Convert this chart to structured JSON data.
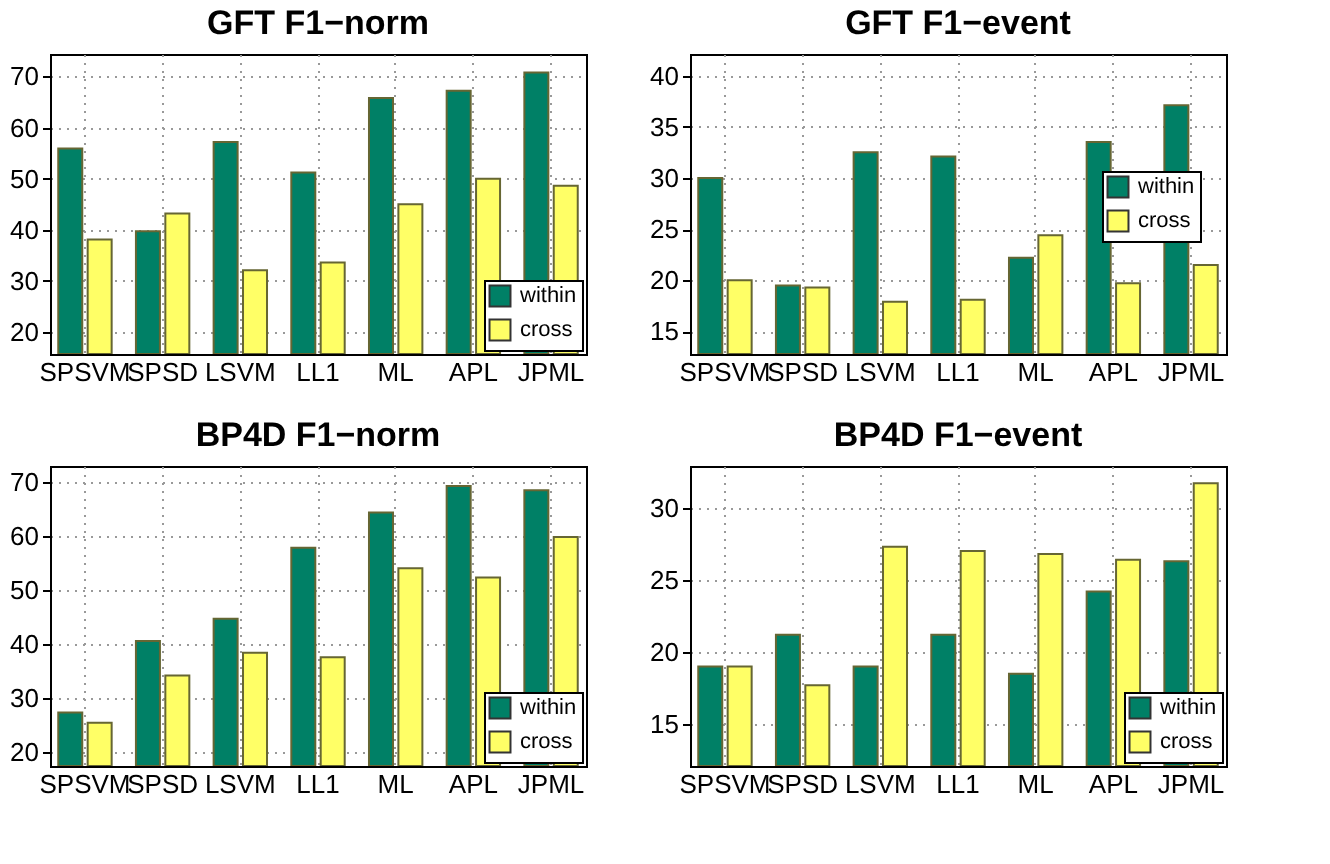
{
  "chart_data": [
    {
      "type": "bar",
      "title": "GFT F1−norm",
      "categories": [
        "SPSVM",
        "SPSD",
        "LSVM",
        "LL1",
        "ML",
        "APL",
        "JPML"
      ],
      "series": [
        {
          "name": "within",
          "color": "#008066",
          "values": [
            55.9,
            39.7,
            57.2,
            51.2,
            65.8,
            67.2,
            70.8
          ]
        },
        {
          "name": "cross",
          "color": "#ffff66",
          "values": [
            38.1,
            43.2,
            32.1,
            33.6,
            45,
            50,
            48.6
          ]
        }
      ],
      "ylim": [
        15.7,
        74.4
      ],
      "yticks": [
        20,
        30,
        40,
        50,
        60,
        70
      ],
      "grid": true,
      "legend": "bottom right"
    },
    {
      "type": "bar",
      "title": "GFT F1−event",
      "categories": [
        "SPSVM",
        "SPSD",
        "LSVM",
        "LL1",
        "ML",
        "APL",
        "JPML"
      ],
      "series": [
        {
          "name": "within",
          "color": "#008066",
          "values": [
            30,
            19.5,
            32.5,
            32.1,
            22.2,
            33.5,
            37.1
          ]
        },
        {
          "name": "cross",
          "color": "#ffff66",
          "values": [
            20,
            19.3,
            17.9,
            18.1,
            24.4,
            19.7,
            21.5
          ]
        }
      ],
      "ylim": [
        12.8,
        42.1
      ],
      "yticks": [
        15,
        20,
        25,
        30,
        35,
        40
      ],
      "grid": true,
      "legend": "right"
    },
    {
      "type": "bar",
      "title": "BP4D F1−norm",
      "categories": [
        "SPSVM",
        "SPSD",
        "LSVM",
        "LL1",
        "ML",
        "APL",
        "JPML"
      ],
      "series": [
        {
          "name": "within",
          "color": "#008066",
          "values": [
            27.4,
            40.6,
            44.7,
            57.8,
            64.3,
            69.2,
            68.4
          ]
        },
        {
          "name": "cross",
          "color": "#ffff66",
          "values": [
            25.5,
            34.2,
            38.4,
            37.6,
            54,
            52.3,
            59.8
          ]
        }
      ],
      "ylim": [
        17.5,
        72.9
      ],
      "yticks": [
        20,
        30,
        40,
        50,
        60,
        70
      ],
      "grid": true,
      "legend": "bottom right"
    },
    {
      "type": "bar",
      "title": "BP4D F1−event",
      "categories": [
        "SPSVM",
        "SPSD",
        "LSVM",
        "LL1",
        "ML",
        "APL",
        "JPML"
      ],
      "series": [
        {
          "name": "within",
          "color": "#008066",
          "values": [
            19,
            21.2,
            19,
            21.2,
            18.5,
            24.2,
            26.3
          ]
        },
        {
          "name": "cross",
          "color": "#ffff66",
          "values": [
            19,
            17.7,
            27.3,
            27,
            26.8,
            26.4,
            31.7
          ]
        }
      ],
      "ylim": [
        12.1,
        32.9
      ],
      "yticks": [
        15,
        20,
        25,
        30
      ],
      "grid": true,
      "legend": "bottom right"
    }
  ]
}
